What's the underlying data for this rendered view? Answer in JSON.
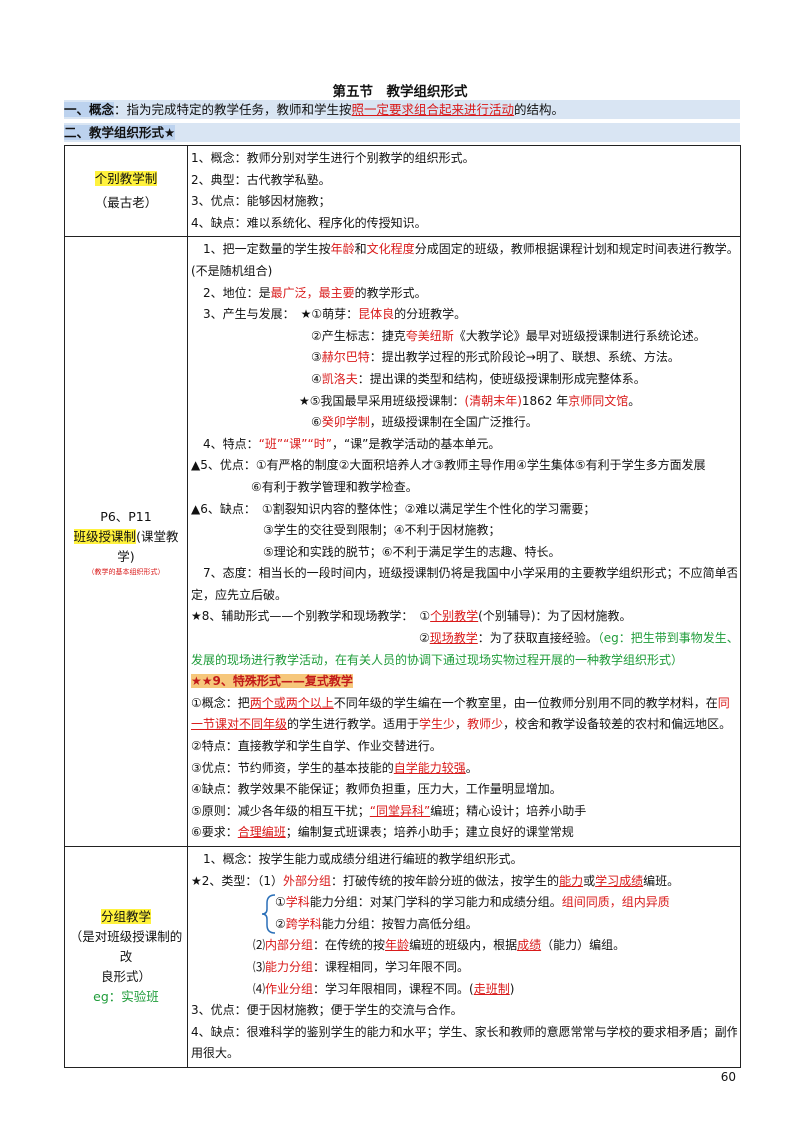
{
  "title": "第五节　教学组织形式",
  "concept": {
    "label": "一、概念",
    "prefix": "：指为完成特定的教学任务，教师和学生按",
    "emph": "照一定要求组合起来进行活动",
    "suffix": "的结构。"
  },
  "section2": {
    "label": "二、教学组织形式★"
  },
  "individual": {
    "name": "个别教学制",
    "note": "（最古老）",
    "lines": [
      "1、概念：教师分别对学生进行个别教学的组织形式。",
      "2、典型：古代教学私塾。",
      "3、优点：能够因材施教；",
      "4、缺点：难以系统化、程序化的传授知识。"
    ]
  },
  "classroom": {
    "ref": "P6、P11",
    "name": "班级授课制",
    "alias": "(课堂教学)",
    "tiny": "（教学的基本组织形式）",
    "l1a": "　1、把一定数量的学生按",
    "l1b": "年龄",
    "l1c": "和",
    "l1d": "文化程度",
    "l1e": "分成固定的班级，教师根据课程计划和规定时间表进行教学。",
    "l1f": "(不是随机组合)",
    "l2a": "　2、地位：是",
    "l2b": "最广泛，最主要",
    "l2c": "的教学形式。",
    "l3a": "　3、产生与发展：　★①萌芽：",
    "l3b": "昆体良",
    "l3c": "的分班教学。",
    "l3d": "②产生标志：捷克",
    "l3e": "夸美纽斯",
    "l3f": "《大教学论》最早对班级授课制进行系统论述。",
    "l3g": "③",
    "l3h": "赫尔巴特",
    "l3i": "：提出教学过程的形式阶段论→明了、联想、系统、方法。",
    "l3j": "④",
    "l3k": "凯洛夫",
    "l3l": "：提出课的类型和结构，使班级授课制形成完整体系。",
    "l3m": "★⑤我国最早采用班级授课制：",
    "l3n": "(清朝末年)",
    "l3o": "1862 年",
    "l3p": "京师同文馆",
    "l3q": "。",
    "l3r": "⑥",
    "l3s": "癸卯学制",
    "l3t": "，班级授课制在全国广泛推行。",
    "l4a": "　4、特点：",
    "l4b": "“班”“课”“时”",
    "l4c": "，“课”是教学活动的基本单元。",
    "l5a": "▲5、优点：①有严格的制度②大面积培养人才③教师主导作用④学生集体⑤有利于学生多方面发展",
    "l5b": "⑥有利于教学管理和教学检查。",
    "l6a": "▲6、缺点：　①割裂知识内容的整体性；②难以满足学生个性化的学习需要；",
    "l6b": "③学生的交往受到限制；④不利于因材施教；",
    "l6c": "⑤理论和实践的脱节；⑥不利于满足学生的志趣、特长。",
    "l7a": "　7、态度：相当长的一段时间内，班级授课制仍将是我国中小学采用的主要教学组织形式；不应简单否",
    "l7b": "定，应先立后破。",
    "l8a": "★8、辅助形式——个别教学和现场教学：　①",
    "l8b": "个别教学",
    "l8c": "(个别辅导)：为了因材施教。",
    "l8d": "②",
    "l8e": "现场教学",
    "l8f": "：为了获取直接经验。",
    "l8g": "（eg：把生带到事物发生、",
    "l8h": "发展的现场进行教学活动，在有关人员的协调下通过现场实物过程开展的一种教学组织形式）",
    "l9": "★★9、特殊形式——复式教学",
    "c1a": "①概念：把",
    "c1b": "两个或两个以上",
    "c1c": "不同年级的学生编在一个教室里，由一位教师分别用不同的教学材料，在",
    "c1d": "同",
    "c1e": "一节课对不同年级",
    "c1f": "的学生进行教学。适用于",
    "c1g": "学生少",
    "c1h": "，",
    "c1i": "教师少",
    "c1j": "，校舍和教学设备较差的农村和偏远地区。",
    "c2": "②特点：直接教学和学生自学、作业交替进行。",
    "c3a": "③优点：节约师资，学生的基本技能的",
    "c3b": "自学能力较强",
    "c3c": "。",
    "c4": "④缺点：教学效果不能保证；教师负担重，压力大，工作量明显增加。",
    "c5a": "⑤原则：减少各年级的相互干扰；",
    "c5b": "“同堂异科”",
    "c5c": "编班；精心设计；培养小助手",
    "c6a": "⑥要求：",
    "c6b": "合理编班",
    "c6c": "；编制复式班课表；培养小助手；建立良好的课堂常规"
  },
  "group": {
    "name": "分组教学",
    "note1": "（是对班级授课制的改",
    "note2": "良形式）",
    "eg": "eg：实验班",
    "g1": "　1、概念：按学生能力或成绩分组进行编班的教学组织形式。",
    "g2a": "★2、类型：（1）",
    "g2b": "外部分组",
    "g2c": "：打破传统的按年龄分班的做法，按学生的",
    "g2d": "能力",
    "g2e": "或",
    "g2f": "学习成绩",
    "g2g": "编班。",
    "g3a": "①",
    "g3b": "学科",
    "g3c": "能力分组：对某门学科的学习能力和成绩分组。",
    "g3d": "组间同质，组内异质",
    "g4a": "②",
    "g4b": "跨学科",
    "g4c": "能力分组：按智力高低分组。",
    "g5a": "⑵",
    "g5b": "内部分组",
    "g5c": "：在传统的按",
    "g5d": "年龄",
    "g5e": "编班的班级内，根据",
    "g5f": "成绩",
    "g5g": "（能力）编组。",
    "g6a": "⑶",
    "g6b": "能力分组",
    "g6c": "：课程相同，学习年限不同。",
    "g7a": "⑷",
    "g7b": "作业分组",
    "g7c": "：学习年限相同，课程不同。(",
    "g7d": "走班制",
    "g7e": ")",
    "g8": "3、优点：便于因材施教；便于学生的交流与合作。",
    "g9a": "4、缺点：很难科学的鉴别学生的能力和水平；学生、家长和教师的意愿常常与学校的要求相矛盾；副作",
    "g9b": "用很大。"
  },
  "page_number": "60"
}
